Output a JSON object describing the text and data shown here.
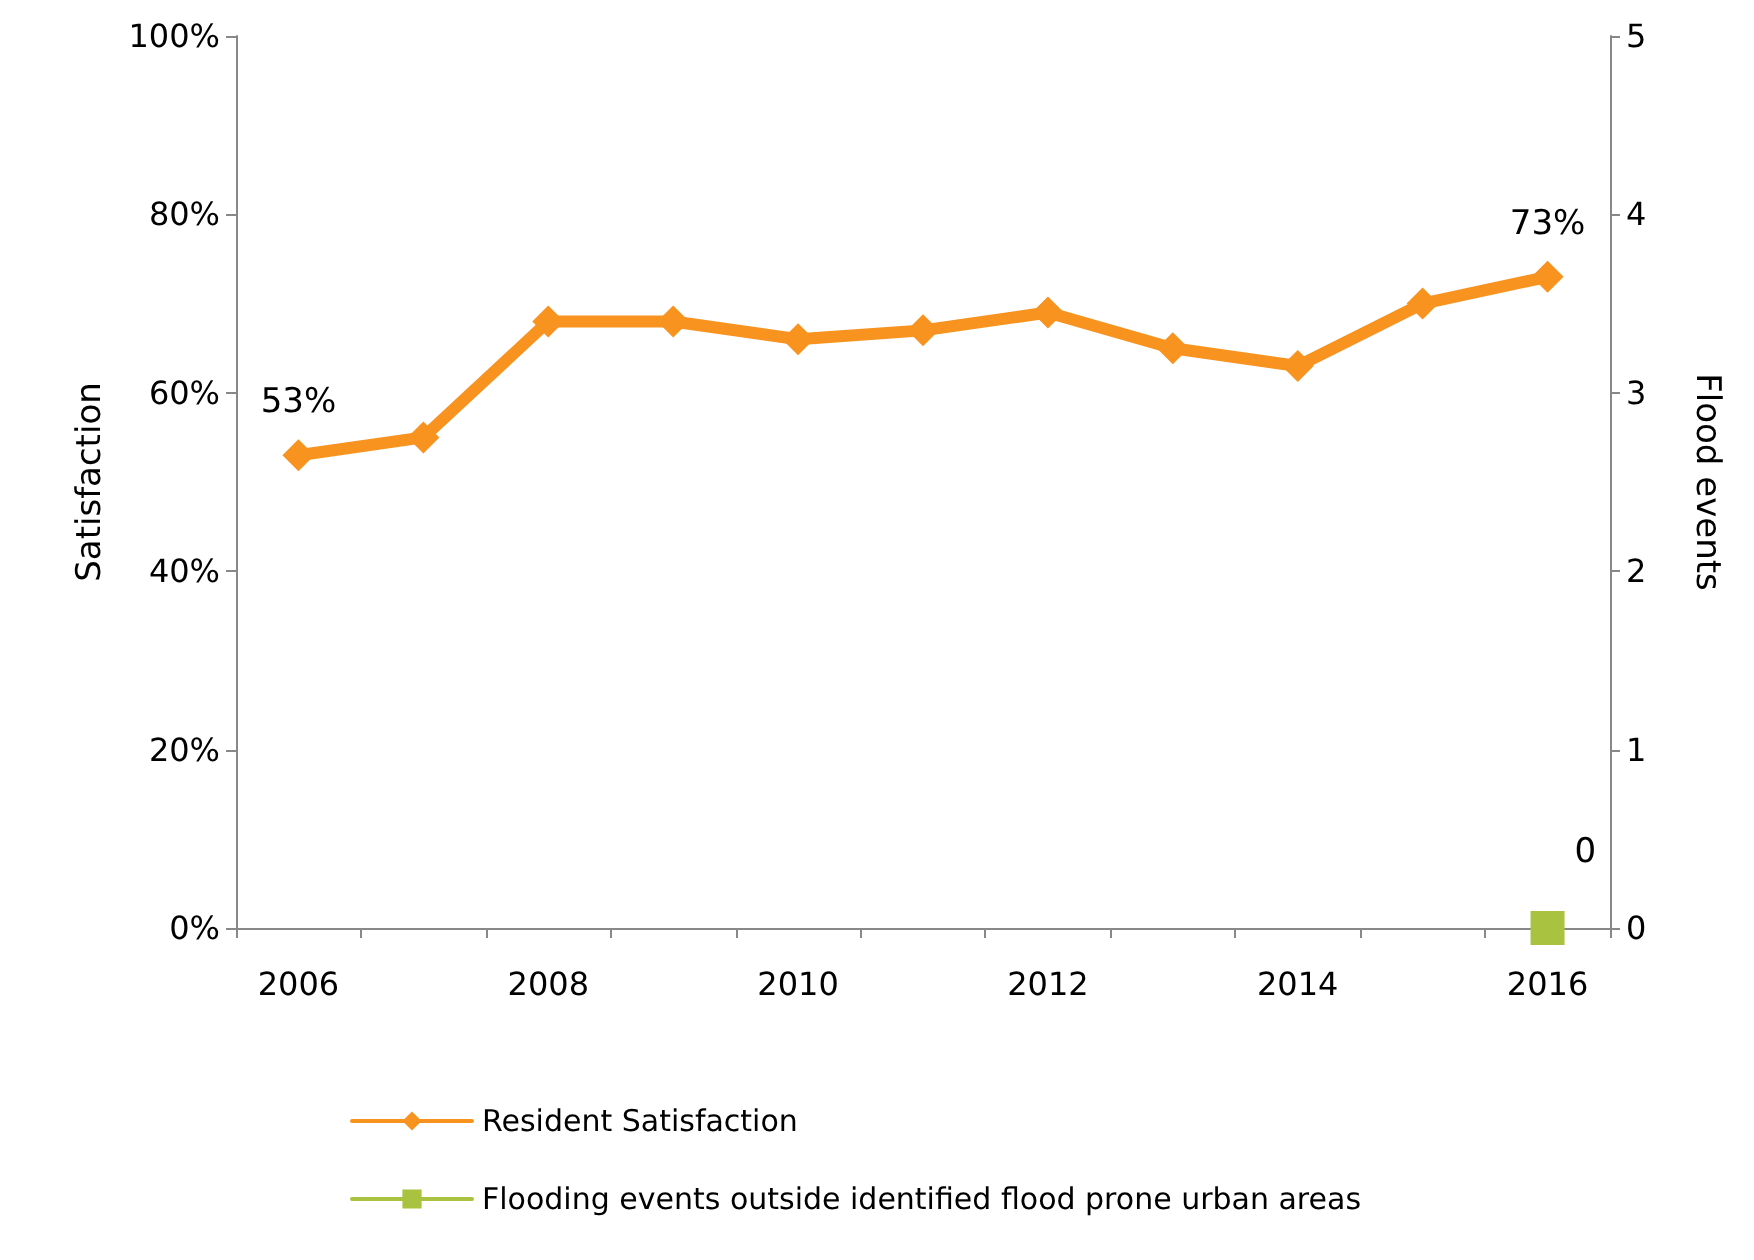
{
  "chart_data": {
    "type": "line",
    "categories": [
      "2006",
      null,
      "2008",
      null,
      "2010",
      null,
      "2012",
      null,
      "2014",
      null,
      "2016"
    ],
    "ylabel": "Satisfaction",
    "y2label": "Flood events",
    "ylim": [
      0,
      100
    ],
    "yticks": [
      {
        "value": 0,
        "label": "0%"
      },
      {
        "value": 20,
        "label": "20%"
      },
      {
        "value": 40,
        "label": "40%"
      },
      {
        "value": 60,
        "label": "60%"
      },
      {
        "value": 80,
        "label": "80%"
      },
      {
        "value": 100,
        "label": "100%"
      }
    ],
    "y2lim": [
      0,
      5
    ],
    "y2ticks": [
      0,
      1,
      2,
      3,
      4,
      5
    ],
    "grid": false,
    "legend": "bottom left",
    "series": [
      {
        "name": "Resident Satisfaction",
        "color": "#f7931e",
        "marker": "diamond",
        "values": [
          53,
          55,
          68,
          68,
          66,
          67,
          69,
          65,
          63,
          70,
          73
        ],
        "value_labels": [
          "53%",
          null,
          null,
          null,
          null,
          null,
          null,
          null,
          null,
          null,
          "73%"
        ]
      },
      {
        "name": "Flooding events outside identified flood prone urban areas",
        "color": "#a9c23f",
        "marker": "square",
        "axis": "y2",
        "values": [
          null,
          null,
          null,
          null,
          null,
          null,
          null,
          null,
          null,
          null,
          0
        ],
        "value_labels": [
          null,
          null,
          null,
          null,
          null,
          null,
          null,
          null,
          null,
          null,
          "0"
        ]
      }
    ]
  }
}
